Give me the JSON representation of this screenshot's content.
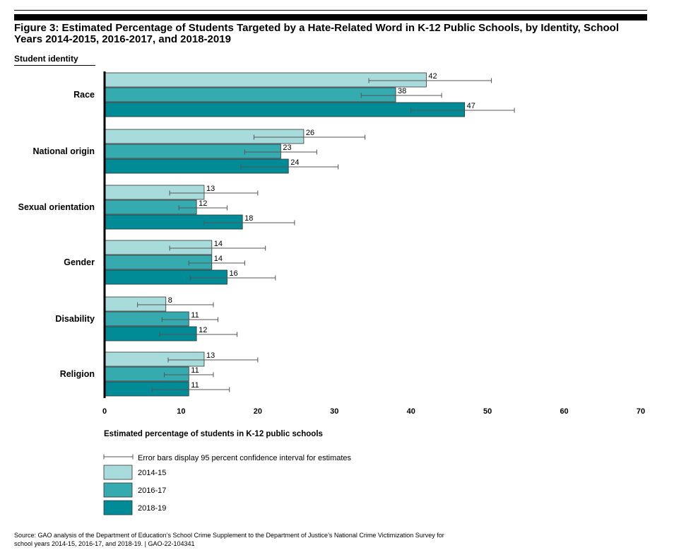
{
  "title_line1": "Figure 3: Estimated Percentage of Students Targeted by a Hate-Related Word in K-12 Public Schools, by Identity, School",
  "title_line2": "Years 2014-2015, 2016-2017, and 2018-2019",
  "y_heading": "Student identity",
  "source_line1": "Source: GAO analysis of the Department of Education’s School Crime Supplement to the Department of Justice’s National Crime Victimization Survey for",
  "source_line2": "school years 2014-15, 2016-17, and 2018-19.  |  GAO-22-104341",
  "colors": {
    "s2014": "#a8dcdc",
    "s2016": "#35abb0",
    "s2018": "#008b97",
    "axis": "#000000",
    "error": "#555555"
  },
  "chart_data": {
    "type": "bar",
    "orientation": "horizontal",
    "xlabel": "Estimated percentage of students in K-12 public schools",
    "ylabel": "Student identity",
    "xlim": [
      0,
      70
    ],
    "xticks": [
      0,
      10,
      20,
      30,
      40,
      50,
      60,
      70
    ],
    "categories": [
      "Race",
      "National origin",
      "Sexual orientation",
      "Gender",
      "Disability",
      "Religion"
    ],
    "series": [
      {
        "name": "2014-15",
        "values": [
          42,
          26,
          13,
          14,
          8,
          13
        ],
        "ci_low": [
          34.5,
          19.5,
          8.5,
          8.5,
          4.3,
          8.3
        ],
        "ci_high": [
          50.5,
          34,
          20,
          21,
          14.2,
          20
        ]
      },
      {
        "name": "2016-17",
        "values": [
          38,
          23,
          12,
          14,
          11,
          11
        ],
        "ci_low": [
          33.5,
          18.3,
          9.7,
          11,
          7.5,
          7.8
        ],
        "ci_high": [
          44,
          27.7,
          16,
          18.3,
          14.8,
          14.2
        ]
      },
      {
        "name": "2018-19",
        "values": [
          47,
          24,
          18,
          16,
          12,
          11
        ],
        "ci_low": [
          40,
          17.8,
          13,
          11.2,
          7.2,
          6.2
        ],
        "ci_high": [
          53.5,
          30.5,
          24.8,
          22.3,
          17.3,
          16.3
        ]
      }
    ],
    "legend_errorbar_label": "Error bars display 95 percent confidence interval for estimates",
    "legend": [
      "2014-15",
      "2016-17",
      "2018-19"
    ],
    "grid": false
  }
}
